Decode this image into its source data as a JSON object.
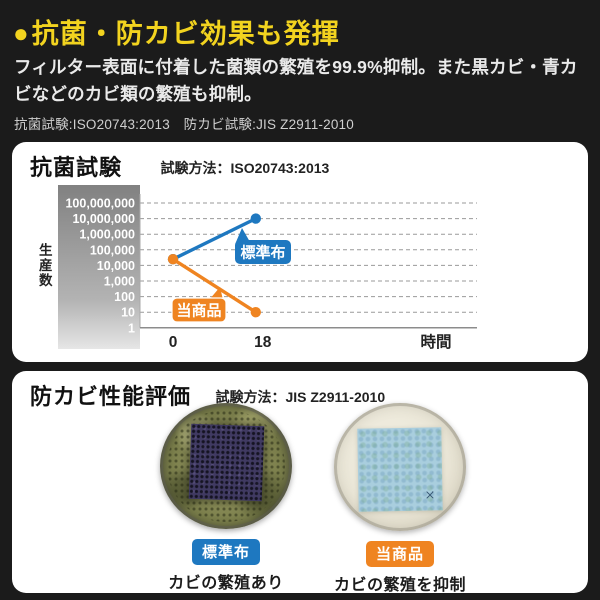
{
  "page": {
    "background": "#1b1b1b"
  },
  "header": {
    "bullet": "●",
    "title": "抗菌・防カビ効果も発揮",
    "title_color": "#f2d31f",
    "description": "フィルター表面に付着した菌類の繁殖を99.9%抑制。また黒カビ・青カビなどのカビ類の繁殖も抑制。",
    "standards_note": "抗菌試験:ISO20743:2013　防カビ試験:JIS Z2911-2010"
  },
  "antibacterial_panel": {
    "title": "抗菌試験",
    "method_label": "試験方法：ISO20743:2013"
  },
  "chart_data": {
    "type": "line",
    "title": "抗菌試験",
    "x": [
      0,
      18
    ],
    "xlabel": "時間",
    "ylabel": "生産数",
    "yscale": "log",
    "ylim": [
      1,
      100000000
    ],
    "yticks": [
      "100,000,000",
      "10,000,000",
      "1,000,000",
      "100,000",
      "10,000",
      "1,000",
      "100",
      "10",
      "1"
    ],
    "grid": "horizontal-dashed",
    "legend_position": "inline-callout-bubbles",
    "series": [
      {
        "name": "標準布",
        "color": "#1e78c0",
        "values": [
          25000,
          10000000
        ]
      },
      {
        "name": "当商品",
        "color": "#ef8421",
        "values": [
          25000,
          10
        ]
      }
    ]
  },
  "antifungal_panel": {
    "title": "防カビ性能評価",
    "method_label": "試験方法：JIS Z2911-2010",
    "samples": [
      {
        "label": "標準布",
        "label_color": "#1e78c0",
        "caption": "カビの繁殖あり",
        "photo": "petri dish covered in olive-green mold with dark purple cloth square"
      },
      {
        "label": "当商品",
        "label_color": "#ef8421",
        "caption": "カビの繁殖を抑制",
        "photo": "clean cream petri dish with light blue cloth square"
      }
    ]
  }
}
